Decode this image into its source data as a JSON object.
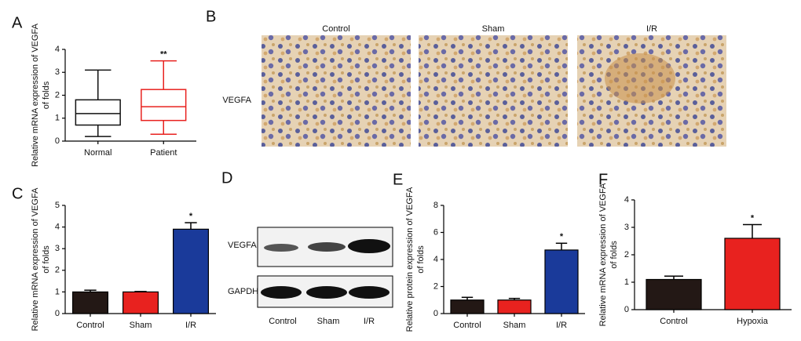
{
  "chart_data": [
    {
      "type": "box",
      "label": "A",
      "ylabel": [
        "Relative mRNA expression of VEGFA",
        "of folds"
      ],
      "categories": [
        "Normal",
        "Patient"
      ],
      "colors": [
        "#111111",
        "#e8221f"
      ],
      "stats": [
        {
          "min": 0.2,
          "q1": 0.7,
          "median": 1.2,
          "q3": 1.8,
          "max": 3.1
        },
        {
          "min": 0.3,
          "q1": 0.9,
          "median": 1.5,
          "q3": 2.25,
          "max": 3.5
        }
      ],
      "significance": [
        null,
        "**"
      ],
      "ylim": [
        0,
        4
      ],
      "yticks": [
        0,
        1,
        2,
        3,
        4
      ]
    },
    {
      "type": "bar",
      "label": "C",
      "ylabel": [
        "Relative mRNA expression of VEGFA",
        "of folds"
      ],
      "categories": [
        "Control",
        "Sham",
        "I/R"
      ],
      "values": [
        1.0,
        1.0,
        3.9
      ],
      "errors": [
        0.08,
        0.02,
        0.3
      ],
      "colors": [
        "#231815",
        "#e8221f",
        "#1a3a9a"
      ],
      "significance": [
        null,
        null,
        "*"
      ],
      "ylim": [
        0,
        5
      ],
      "yticks": [
        0,
        1,
        2,
        3,
        4,
        5
      ]
    },
    {
      "type": "bar",
      "label": "E",
      "ylabel": [
        "Relative protein expression of VEGFA",
        "of folds"
      ],
      "categories": [
        "Control",
        "Sham",
        "I/R"
      ],
      "values": [
        1.0,
        1.0,
        4.7
      ],
      "errors": [
        0.2,
        0.12,
        0.5
      ],
      "colors": [
        "#231815",
        "#e8221f",
        "#1a3a9a"
      ],
      "significance": [
        null,
        null,
        "*"
      ],
      "ylim": [
        0,
        8
      ],
      "yticks": [
        0,
        2,
        4,
        6,
        8
      ]
    },
    {
      "type": "bar",
      "label": "F",
      "ylabel": [
        "Relative mRNA expression of VEGFA",
        "of folds"
      ],
      "categories": [
        "Control",
        "Hypoxia"
      ],
      "values": [
        1.1,
        2.6
      ],
      "errors": [
        0.12,
        0.5
      ],
      "colors": [
        "#231815",
        "#e8221f"
      ],
      "significance": [
        null,
        "*"
      ],
      "ylim": [
        0,
        4
      ],
      "yticks": [
        0,
        1,
        2,
        3,
        4
      ]
    }
  ],
  "panel_b": {
    "label": "B",
    "columns": [
      "Control",
      "Sham",
      "I/R"
    ],
    "row_label": "VEGFA"
  },
  "panel_d": {
    "label": "D",
    "bands": [
      "VEGFA",
      "GAPDH"
    ],
    "lanes": [
      "Control",
      "Sham",
      "I/R"
    ]
  }
}
